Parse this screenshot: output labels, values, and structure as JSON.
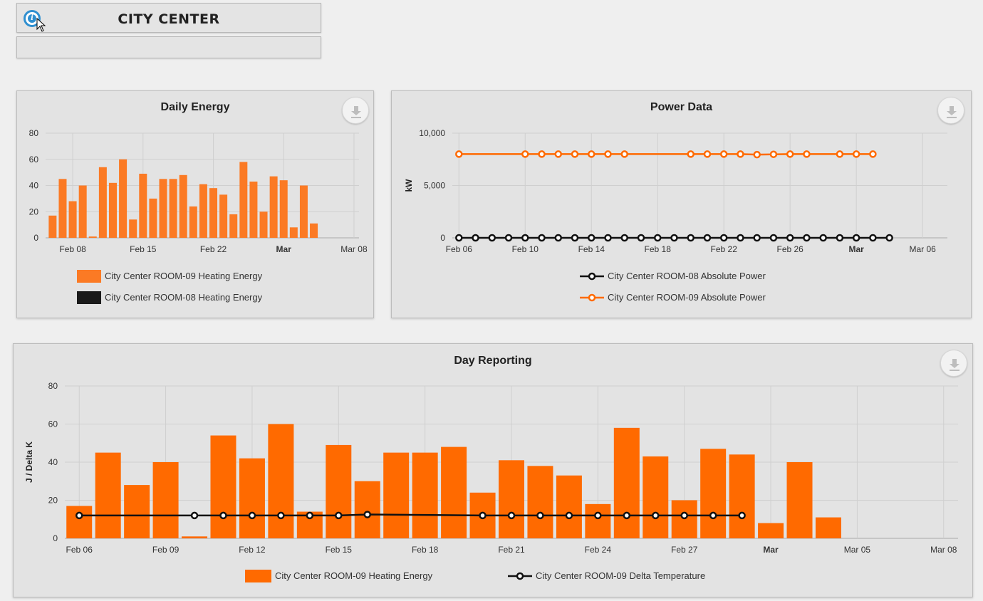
{
  "header": {
    "title": "CITY CENTER",
    "subtitle": ""
  },
  "colors": {
    "orange": "#ff6a00",
    "orange_light": "#fb7a24",
    "black": "#111111",
    "grid": "#c8c8c8",
    "panel_bg": "#e3e3e3"
  },
  "icons": {
    "info": "info-icon",
    "download": "download-icon",
    "cursor": "mouse-pointer-icon"
  },
  "chart_data": [
    {
      "type": "bar",
      "title": "Daily Energy",
      "xlabel": "",
      "ylabel": "",
      "ylim": [
        0,
        80
      ],
      "yticks": [
        "0",
        "20",
        "40",
        "60",
        "80"
      ],
      "xticks": [
        {
          "label": "Feb 08",
          "day": 8,
          "bold": false
        },
        {
          "label": "Feb 15",
          "day": 15,
          "bold": false
        },
        {
          "label": "Feb 22",
          "day": 22,
          "bold": false
        },
        {
          "label": "Mar",
          "day": 29,
          "bold": true
        },
        {
          "label": "Mar 08",
          "day": 36,
          "bold": false
        }
      ],
      "x_start_day": 5.3,
      "x_end_day": 36.5,
      "series": [
        {
          "name": "City Center ROOM-09 Heating Energy",
          "color": "#fb7a24",
          "days": [
            6,
            7,
            8,
            9,
            10,
            11,
            12,
            13,
            14,
            15,
            16,
            17,
            18,
            19,
            20,
            21,
            22,
            23,
            24,
            25,
            26,
            27,
            28,
            29,
            30,
            31,
            32
          ],
          "values": [
            17,
            45,
            28,
            40,
            1,
            54,
            42,
            60,
            14,
            49,
            30,
            45,
            45,
            48,
            24,
            41,
            38,
            33,
            18,
            58,
            43,
            20,
            47,
            44,
            8,
            40,
            11
          ]
        },
        {
          "name": "City Center ROOM-08 Heating Energy",
          "color": "#1a1a1a",
          "days": [],
          "values": []
        }
      ]
    },
    {
      "type": "line",
      "title": "Power Data",
      "ylabel": "kW",
      "ylim": [
        0,
        10000
      ],
      "yticks": [
        "0",
        "5,000",
        "10,000"
      ],
      "xticks": [
        {
          "label": "Feb 06",
          "day": 6,
          "bold": false
        },
        {
          "label": "Feb 10",
          "day": 10,
          "bold": false
        },
        {
          "label": "Feb 14",
          "day": 14,
          "bold": false
        },
        {
          "label": "Feb 18",
          "day": 18,
          "bold": false
        },
        {
          "label": "Feb 22",
          "day": 22,
          "bold": false
        },
        {
          "label": "Feb 26",
          "day": 26,
          "bold": false
        },
        {
          "label": "Mar",
          "day": 30,
          "bold": true
        },
        {
          "label": "Mar 06",
          "day": 34,
          "bold": false
        }
      ],
      "x_start_day": 5.6,
      "x_end_day": 35.5,
      "series": [
        {
          "name": "City Center ROOM-08 Absolute Power",
          "color": "#111111",
          "days": [
            6,
            7,
            8,
            9,
            10,
            11,
            12,
            13,
            14,
            15,
            16,
            17,
            18,
            19,
            20,
            21,
            22,
            23,
            24,
            25,
            26,
            27,
            28,
            29,
            30,
            31,
            32
          ],
          "values": [
            0,
            0,
            0,
            0,
            0,
            0,
            0,
            0,
            0,
            0,
            0,
            0,
            0,
            0,
            0,
            0,
            0,
            0,
            0,
            0,
            0,
            0,
            0,
            0,
            0,
            0,
            0
          ]
        },
        {
          "name": "City Center ROOM-09 Absolute Power",
          "color": "#ff6a00",
          "days": [
            6,
            10,
            11,
            12,
            13,
            14,
            15,
            16,
            20,
            21,
            22,
            23,
            24,
            25,
            26,
            27,
            29,
            30,
            31
          ],
          "values": [
            8000,
            8000,
            8000,
            8000,
            8000,
            8000,
            8000,
            8000,
            8000,
            8000,
            8000,
            8000,
            7950,
            7980,
            8000,
            8000,
            8000,
            8000,
            8000
          ]
        }
      ]
    },
    {
      "type": "bar",
      "title": "Day Reporting",
      "ylabel": "J / Delta K",
      "ylim": [
        0,
        80
      ],
      "yticks": [
        "0",
        "20",
        "40",
        "60",
        "80"
      ],
      "xticks": [
        {
          "label": "Feb 06",
          "day": 6,
          "bold": false
        },
        {
          "label": "Feb 09",
          "day": 9,
          "bold": false
        },
        {
          "label": "Feb 12",
          "day": 12,
          "bold": false
        },
        {
          "label": "Feb 15",
          "day": 15,
          "bold": false
        },
        {
          "label": "Feb 18",
          "day": 18,
          "bold": false
        },
        {
          "label": "Feb 21",
          "day": 21,
          "bold": false
        },
        {
          "label": "Feb 24",
          "day": 24,
          "bold": false
        },
        {
          "label": "Feb 27",
          "day": 27,
          "bold": false
        },
        {
          "label": "Mar",
          "day": 30,
          "bold": true
        },
        {
          "label": "Mar 05",
          "day": 33,
          "bold": false
        },
        {
          "label": "Mar 08",
          "day": 36,
          "bold": false
        }
      ],
      "x_start_day": 5.5,
      "x_end_day": 36.5,
      "series": [
        {
          "name": "City Center ROOM-09 Heating Energy",
          "color": "#ff6a00",
          "kind": "bar",
          "days": [
            6,
            7,
            8,
            9,
            10,
            11,
            12,
            13,
            14,
            15,
            16,
            17,
            18,
            19,
            20,
            21,
            22,
            23,
            24,
            25,
            26,
            27,
            28,
            29,
            30,
            31,
            32
          ],
          "values": [
            17,
            45,
            28,
            40,
            1,
            54,
            42,
            60,
            14,
            49,
            30,
            45,
            45,
            48,
            24,
            41,
            38,
            33,
            18,
            58,
            43,
            20,
            47,
            44,
            8,
            40,
            11
          ]
        },
        {
          "name": "City Center ROOM-09 Delta Temperature",
          "color": "#111111",
          "kind": "line",
          "days": [
            6,
            10,
            11,
            12,
            13,
            14,
            15,
            16,
            20,
            21,
            22,
            23,
            24,
            25,
            26,
            27,
            28,
            29
          ],
          "values": [
            12,
            12,
            12,
            12,
            12,
            12,
            12,
            12.5,
            12,
            12,
            12,
            12,
            12,
            12,
            12,
            12,
            12,
            12
          ]
        }
      ]
    }
  ]
}
